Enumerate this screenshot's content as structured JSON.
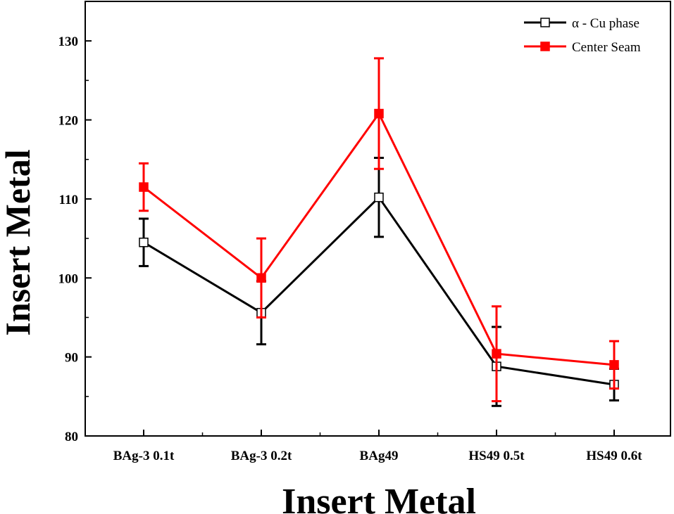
{
  "chart_data": {
    "type": "line",
    "categories": [
      "BAg-3 0.1t",
      "BAg-3 0.2t",
      "BAg49",
      "HS49 0.5t",
      "HS49 0.6t"
    ],
    "series": [
      {
        "name": "α - Cu phase",
        "values": [
          104.5,
          95.6,
          110.2,
          88.8,
          86.5
        ],
        "err_low": [
          3.0,
          4.0,
          5.0,
          5.0,
          2.0
        ],
        "err_high": [
          3.0,
          4.0,
          5.0,
          5.0,
          2.0
        ],
        "color": "#000000",
        "marker": "open-square"
      },
      {
        "name": "Center Seam",
        "values": [
          111.5,
          100.0,
          120.8,
          90.4,
          89.0
        ],
        "err_low": [
          3.0,
          5.0,
          7.0,
          6.0,
          3.0
        ],
        "err_high": [
          3.0,
          5.0,
          7.0,
          6.0,
          3.0
        ],
        "color": "#ff0000",
        "marker": "filled-square"
      }
    ],
    "xlabel": "Insert Metal",
    "ylabel": "Insert Metal",
    "ylim": [
      80,
      135
    ],
    "yticks": [
      80,
      90,
      100,
      110,
      120,
      130
    ],
    "grid": false,
    "legend_position": "top-right"
  }
}
